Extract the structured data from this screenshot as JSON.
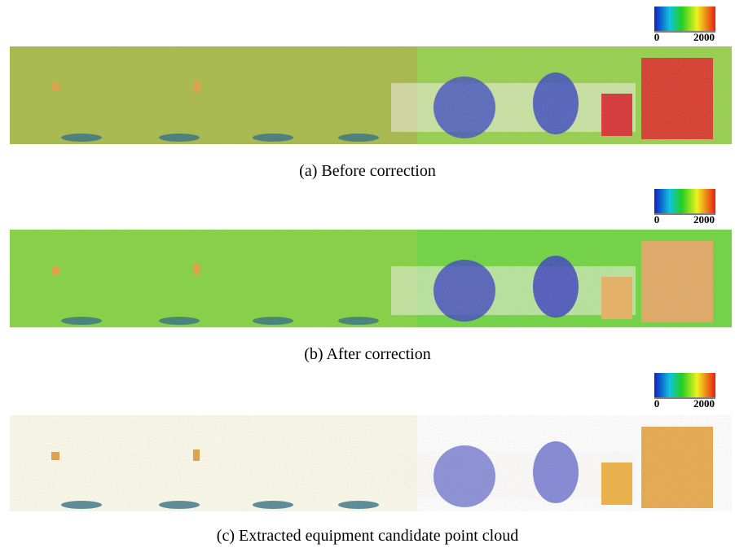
{
  "panels": [
    {
      "caption": "(a) Before correction",
      "colorbar": {
        "min": 0,
        "max": 2000
      }
    },
    {
      "caption": "(b) After correction",
      "colorbar": {
        "min": 0,
        "max": 2000
      }
    },
    {
      "caption": "(c) Extracted equipment candidate point cloud",
      "colorbar": {
        "min": 0,
        "max": 2000
      }
    }
  ]
}
